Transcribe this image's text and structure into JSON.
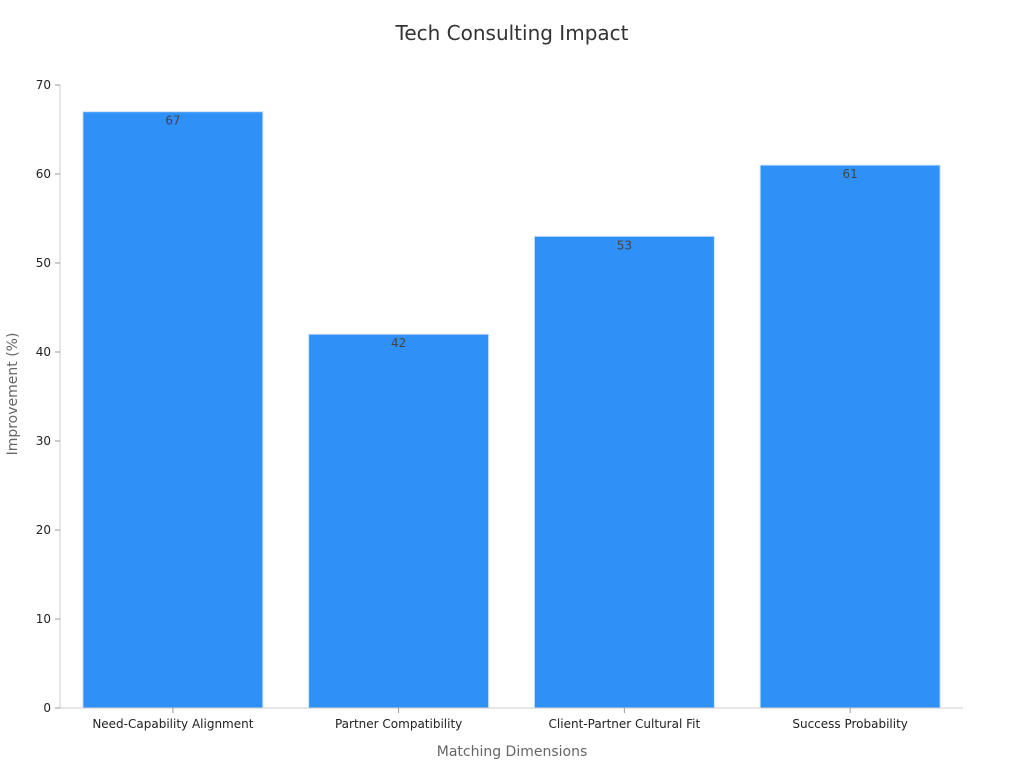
{
  "chart_data": {
    "type": "bar",
    "title": "Tech Consulting Impact",
    "xlabel": "Matching Dimensions",
    "ylabel": "Improvement (%)",
    "categories": [
      "Need-Capability Alignment",
      "Partner Compatibility",
      "Client-Partner Cultural Fit",
      "Success Probability"
    ],
    "values": [
      67,
      42,
      53,
      61
    ],
    "data_labels": [
      "67",
      "42",
      "53",
      "61"
    ],
    "ylim": [
      0,
      70
    ],
    "yticks": [
      0,
      10,
      20,
      30,
      40,
      50,
      60,
      70
    ],
    "bar_color": "#2f91f8",
    "grid": false,
    "legend": "none"
  }
}
